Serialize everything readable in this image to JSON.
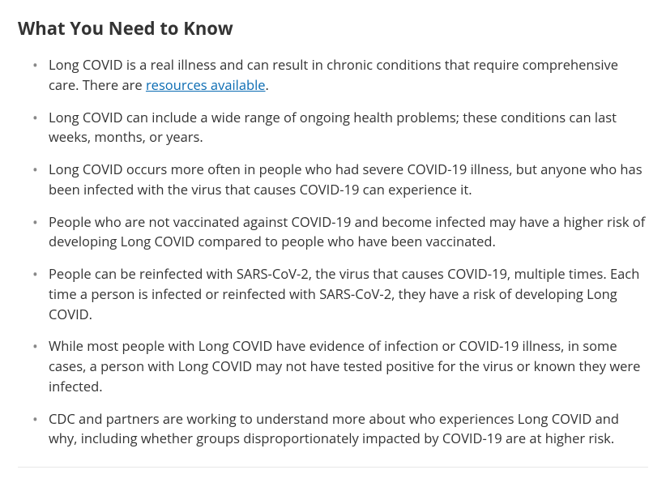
{
  "heading": "What You Need to Know",
  "items": [
    {
      "text_before": "Long COVID is a real illness and can result in chronic conditions that require comprehensive care. There are ",
      "link_text": "resources available",
      "text_after": "."
    },
    {
      "text": "Long COVID can include a wide range of ongoing health problems; these conditions can last weeks, months, or years."
    },
    {
      "text": "Long COVID occurs more often in people who had severe COVID-19 illness, but anyone who has been infected with the virus that causes COVID-19 can experience it."
    },
    {
      "text": "People who are not vaccinated against COVID-19 and become infected may have a higher risk of developing Long COVID compared to people who have been vaccinated."
    },
    {
      "text": "People can be reinfected with SARS-CoV-2, the virus that causes COVID-19, multiple times. Each time a person is infected or reinfected with SARS-CoV-2, they have a risk of developing Long COVID."
    },
    {
      "text": "While most people with Long COVID have evidence of infection or COVID-19 illness, in some cases, a person with Long COVID may not have tested positive for the virus or known they were infected."
    },
    {
      "text": "CDC and partners are working to understand more about who experiences Long COVID and why, including whether groups disproportionately impacted by COVID-19 are at higher risk."
    }
  ],
  "colors": {
    "text": "#333333",
    "bullet": "#888888",
    "link": "#0b6cb3",
    "background": "#ffffff",
    "border": "#e8e8e8"
  },
  "typography": {
    "heading_fontsize": 22,
    "heading_weight": 700,
    "body_fontsize": 16.5,
    "line_height": 1.5,
    "font_family": "Segoe UI, Open Sans, Arial, sans-serif"
  }
}
